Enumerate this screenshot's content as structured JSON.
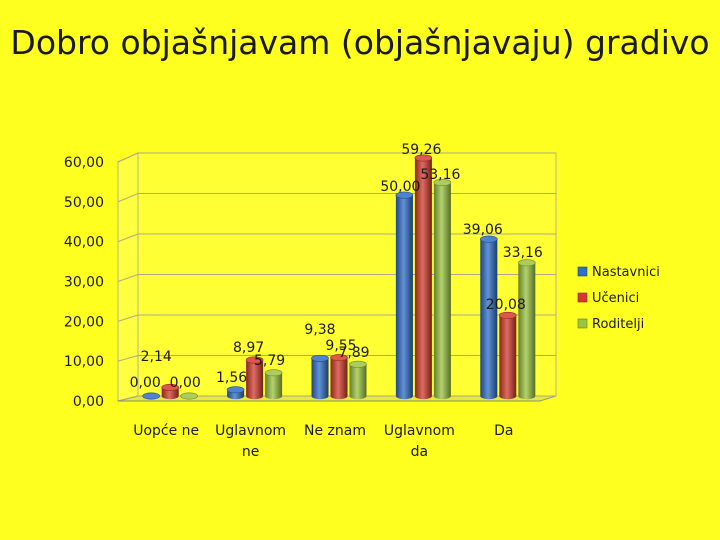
{
  "title": "Dobro objašnjavam (objašnjavaju) gradivo",
  "colors": {
    "background": "#FFFF1F",
    "gridline": "#9a9a8a",
    "wall": "#ffff33"
  },
  "chart_data": {
    "type": "bar",
    "style": "3d-cylinder",
    "title": "",
    "xlabel": "",
    "ylabel": "",
    "ylim": [
      0,
      60
    ],
    "yticks": [
      "0,00",
      "10,00",
      "20,00",
      "30,00",
      "40,00",
      "50,00",
      "60,00"
    ],
    "grid": true,
    "legend_position": "right",
    "categories": [
      [
        "Uopće ne"
      ],
      [
        "Uglavnom",
        "ne"
      ],
      [
        "Ne znam"
      ],
      [
        "Uglavnom",
        "da"
      ],
      [
        "Da"
      ]
    ],
    "series": [
      {
        "name": "Nastavnici",
        "color": "#2E6DC8",
        "values": [
          0.0,
          1.56,
          9.38,
          50.0,
          39.06
        ],
        "labels": [
          "0,00",
          "1,56",
          "9,38",
          "50,00",
          "39,06"
        ]
      },
      {
        "name": "Učenici",
        "color": "#D33B2C",
        "values": [
          2.14,
          8.97,
          9.55,
          59.26,
          20.08
        ],
        "labels": [
          "2,14",
          "8,97",
          "9,55",
          "59,26",
          "20,08"
        ]
      },
      {
        "name": "Roditelji",
        "color": "#9BC43F",
        "values": [
          0.0,
          5.79,
          7.89,
          53.16,
          33.16
        ],
        "labels": [
          "0,00",
          "5,79",
          "7,89",
          "53,16",
          "33,16"
        ]
      }
    ]
  }
}
